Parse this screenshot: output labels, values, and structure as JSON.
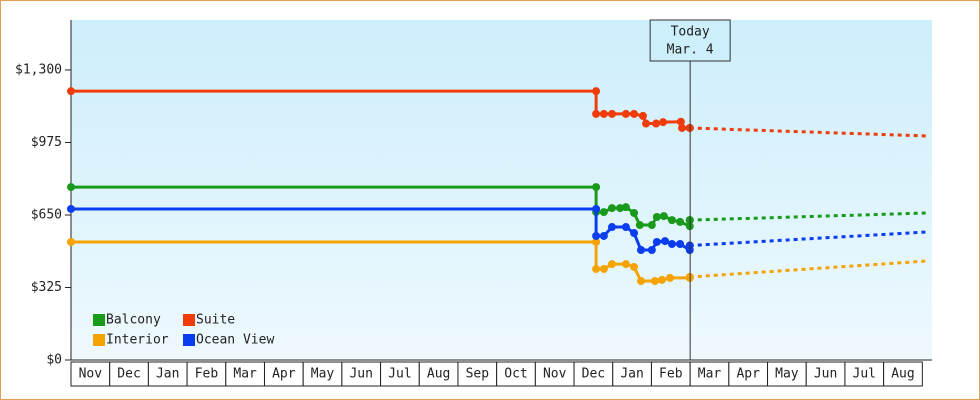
{
  "chart_data": {
    "type": "line",
    "ylim": [
      0,
      1524
    ],
    "yticks": [
      {
        "value": 0,
        "label": "$0"
      },
      {
        "value": 325,
        "label": "$325"
      },
      {
        "value": 650,
        "label": "$650"
      },
      {
        "value": 975,
        "label": "$975"
      },
      {
        "value": 1300,
        "label": "$1,300"
      }
    ],
    "xlim": [
      0,
      22.25
    ],
    "x_categories": [
      "Nov",
      "Dec",
      "Jan",
      "Feb",
      "Mar",
      "Apr",
      "May",
      "Jun",
      "Jul",
      "Aug",
      "Sep",
      "Oct",
      "Nov",
      "Dec",
      "Jan",
      "Feb",
      "Mar",
      "Apr",
      "May",
      "Jun",
      "Jul",
      "Aug"
    ],
    "today": {
      "x": 16.0,
      "label": "Today",
      "date": "Mar. 4"
    },
    "legend": "lower-left",
    "series": [
      {
        "name": "Balcony",
        "color": "#1a9a1a",
        "x": [
          0,
          13.57,
          13.57,
          13.77,
          13.98,
          14.19,
          14.34,
          14.55,
          14.7,
          15.01,
          15.14,
          15.32,
          15.53,
          15.74,
          15.99,
          15.99
        ],
        "values": [
          775,
          775,
          663,
          663,
          681,
          681,
          685,
          659,
          605,
          605,
          641,
          645,
          627,
          619,
          600,
          627
        ],
        "forecast": {
          "x": [
            15.99,
            22.14
          ],
          "values": [
            627,
            659
          ]
        }
      },
      {
        "name": "Suite",
        "color": "#f03c0a",
        "x": [
          0,
          13.57,
          13.57,
          13.77,
          13.98,
          14.34,
          14.55,
          14.78,
          14.86,
          15.12,
          15.3,
          15.76,
          15.79,
          15.99
        ],
        "values": [
          1205,
          1205,
          1103,
          1103,
          1103,
          1103,
          1103,
          1094,
          1060,
          1060,
          1066,
          1068,
          1040,
          1040
        ],
        "forecast": {
          "x": [
            15.99,
            22.14
          ],
          "values": [
            1040,
            1004
          ]
        }
      },
      {
        "name": "Interior",
        "color": "#f5a300",
        "x": [
          0,
          13.57,
          13.57,
          13.77,
          13.98,
          14.34,
          14.55,
          14.73,
          15.09,
          15.27,
          15.48,
          15.99
        ],
        "values": [
          529,
          529,
          408,
          408,
          430,
          430,
          417,
          354,
          354,
          359,
          368,
          368
        ],
        "forecast": {
          "x": [
            15.99,
            22.14
          ],
          "values": [
            372,
            444
          ]
        }
      },
      {
        "name": "Ocean View",
        "color": "#0a3cf0",
        "x": [
          0,
          13.57,
          13.57,
          13.77,
          13.98,
          14.34,
          14.55,
          14.73,
          15.01,
          15.14,
          15.35,
          15.53,
          15.74,
          15.99
        ],
        "values": [
          677,
          677,
          556,
          556,
          596,
          596,
          569,
          493,
          493,
          529,
          533,
          520,
          520,
          493
        ],
        "forecast": {
          "x": [
            15.99,
            22.14
          ],
          "values": [
            513,
            574
          ]
        }
      }
    ]
  }
}
